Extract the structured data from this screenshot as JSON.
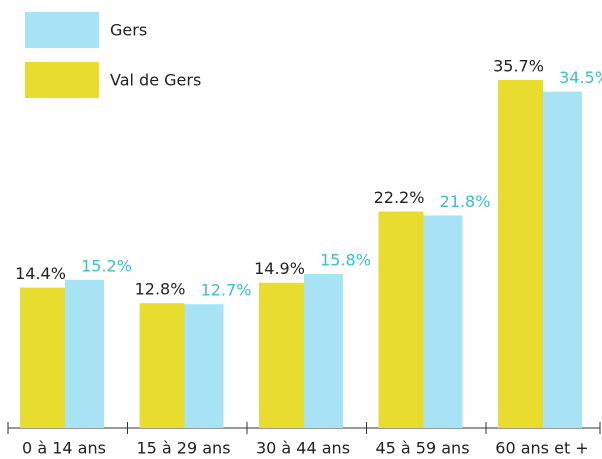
{
  "chart_data": {
    "type": "bar",
    "categories": [
      "0 à 14 ans",
      "15 à 29 ans",
      "30 à 44 ans",
      "45 à 59 ans",
      "60 ans et +"
    ],
    "series": [
      {
        "name": "Val de Gers",
        "color": "#e8dc2e",
        "label_color": "#222222",
        "values": [
          14.4,
          12.8,
          14.9,
          22.2,
          35.7
        ],
        "value_labels": [
          "14.4%",
          "12.8%",
          "14.9%",
          "22.2%",
          "35.7%"
        ]
      },
      {
        "name": "Gers",
        "color": "#a8e3f5",
        "label_color": "#3bbfc8",
        "values": [
          15.2,
          12.7,
          15.8,
          21.8,
          34.5
        ],
        "value_labels": [
          "15.2%",
          "12.7%",
          "15.8%",
          "21.8%",
          "34.5%"
        ]
      }
    ],
    "ylim": [
      0,
      40
    ]
  }
}
